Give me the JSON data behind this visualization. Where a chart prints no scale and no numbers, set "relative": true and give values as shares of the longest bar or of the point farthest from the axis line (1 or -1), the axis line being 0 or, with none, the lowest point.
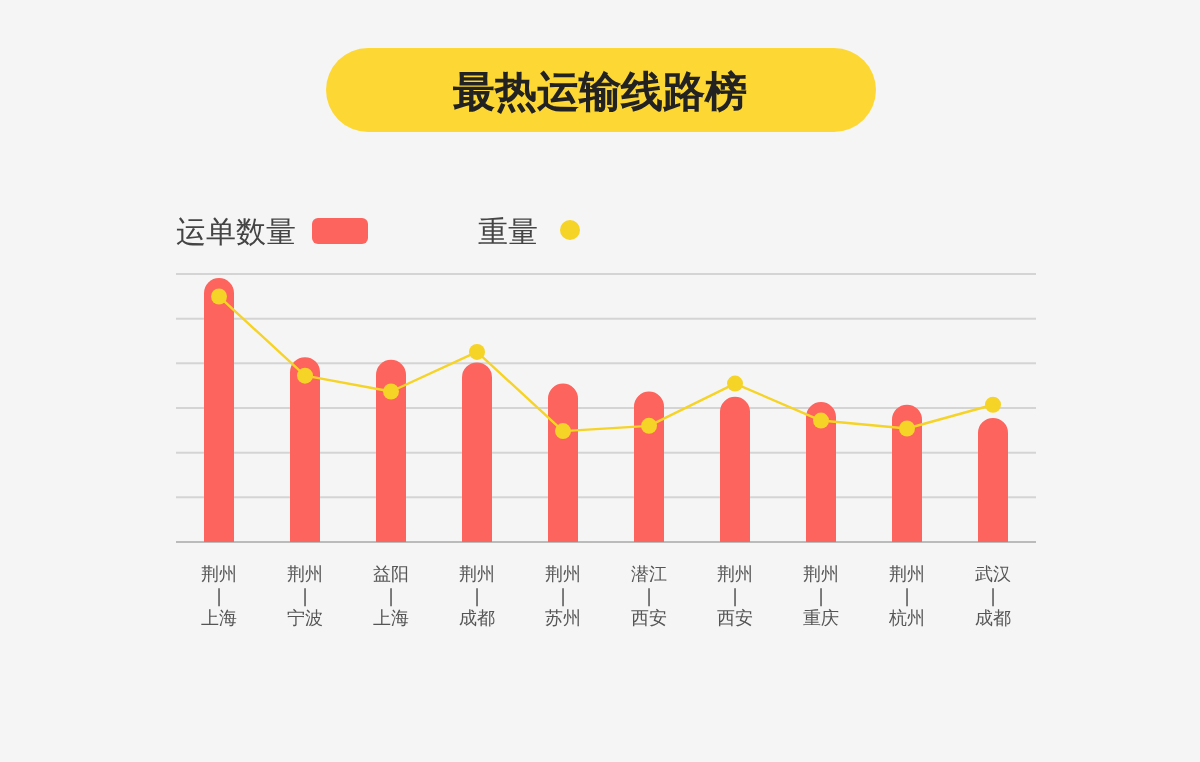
{
  "chart_data": {
    "type": "bar",
    "title": "最热运输线路榜",
    "relative": true,
    "grid": "y",
    "legend": "top left",
    "categories": [
      "荆州\n|\n上海",
      "荆州\n|\n宁波",
      "益阳\n|\n上海",
      "荆州\n|\n成都",
      "荆州\n|\n苏州",
      "潜江\n|\n西安",
      "荆州\n|\n西安",
      "荆州\n|\n重庆",
      "荆州\n|\n杭州",
      "武汉\n|\n成都"
    ],
    "series": [
      {
        "name": "运单数量",
        "color": "#fd645d",
        "values": [
          1,
          0.7,
          0.69,
          0.68,
          0.6,
          0.57,
          0.55,
          0.53,
          0.52,
          0.47
        ]
      },
      {
        "name": "重量",
        "type": "line",
        "color": "#f5d327",
        "marker": "circle",
        "values": [
          0.93,
          0.63,
          0.57,
          0.72,
          0.42,
          0.44,
          0.6,
          0.46,
          0.43,
          0.52
        ]
      }
    ]
  }
}
